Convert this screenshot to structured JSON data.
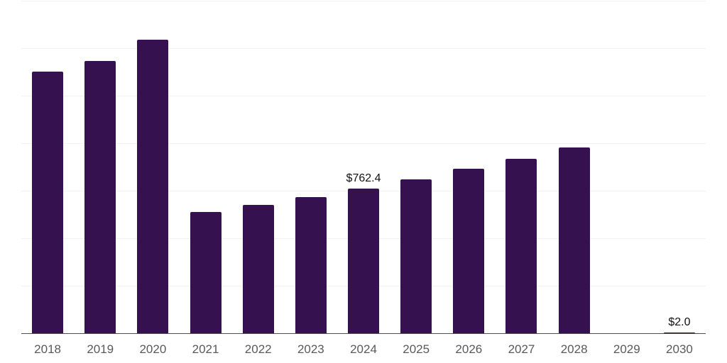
{
  "chart_data": {
    "type": "bar",
    "categories": [
      "2018",
      "2019",
      "2020",
      "2021",
      "2022",
      "2023",
      "2024",
      "2025",
      "2026",
      "2027",
      "2028",
      "2029",
      "2030"
    ],
    "values": [
      1378,
      1434,
      1543,
      638,
      676,
      717,
      762.4,
      810,
      866,
      918,
      978,
      0,
      2.0
    ],
    "point_labels": [
      null,
      null,
      null,
      null,
      null,
      null,
      "$762.4",
      null,
      null,
      null,
      null,
      null,
      "$2.0"
    ],
    "ylim": [
      0,
      1750
    ],
    "grid": true,
    "grid_step": 250,
    "legend": false,
    "colors": {
      "bar": "#361150",
      "gridline": "#f2f2f2",
      "axis_line": "#4d4d4d",
      "tick_label": "#595959",
      "data_label": "#111111",
      "background": "#ffffff"
    }
  }
}
